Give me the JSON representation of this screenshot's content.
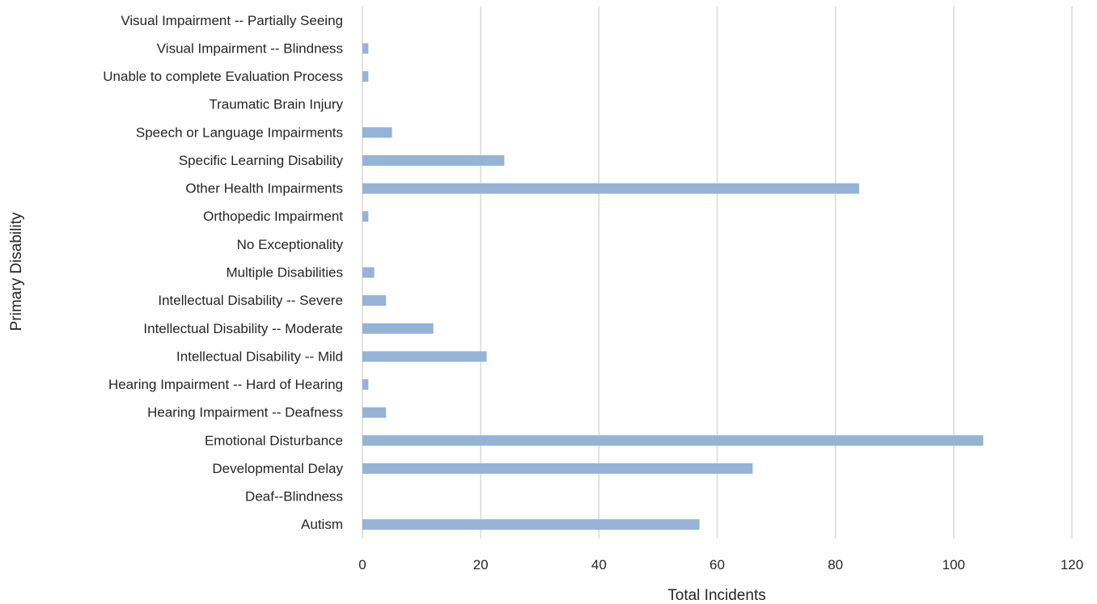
{
  "chart_data": {
    "type": "bar",
    "orientation": "horizontal",
    "categories": [
      "Autism",
      "Deaf--Blindness",
      "Developmental  Delay",
      "Emotional  Disturbance",
      "Hearing Impairment -- Deafness",
      "Hearing Impairment -- Hard of Hearing",
      "Intellectual Disability -- Mild",
      "Intellectual Disability -- Moderate",
      "Intellectual Disability -- Severe",
      "Multiple  Disabilities",
      "No Exceptionality",
      "Orthopedic  Impairment",
      "Other Health Impairments",
      "Specific Learning Disability",
      "Speech or Language Impairments",
      "Traumatic Brain Injury",
      "Unable to complete Evaluation Process",
      "Visual Impairment -- Blindness",
      "Visual Impairment -- Partially Seeing"
    ],
    "values": [
      57,
      0,
      66,
      105,
      4,
      1,
      21,
      12,
      4,
      2,
      0,
      1,
      84,
      24,
      5,
      0,
      1,
      1,
      0
    ],
    "title": "",
    "xlabel": "Total Incidents",
    "ylabel": "Primary Disability",
    "xlim": [
      0,
      120
    ],
    "xticks": [
      "0",
      "20",
      "40",
      "60",
      "80",
      "100",
      "120"
    ],
    "grid": "vertical",
    "legend": "none",
    "bar_color": "#95B3D7",
    "grid_color": "#D9D9D9"
  }
}
